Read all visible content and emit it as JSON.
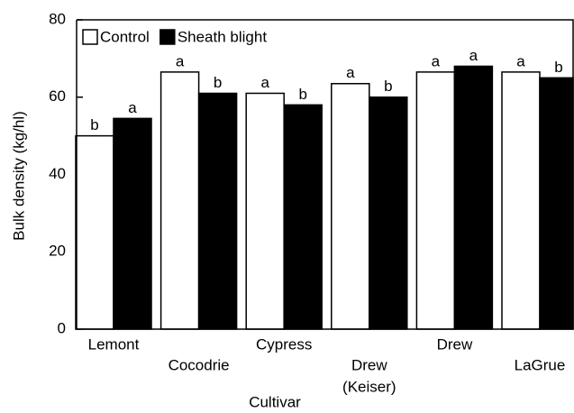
{
  "chart_data": {
    "type": "bar",
    "y_label": "Bulk density (kg/hl)",
    "x_label": "Cultivar",
    "categories": [
      "Lemont",
      "Cocodrie",
      "Cypress",
      [
        "Drew",
        "(Keiser)"
      ],
      "Drew",
      "LaGrue"
    ],
    "series": [
      {
        "name": "Control",
        "color": "#ffffff",
        "values": [
          50,
          66.5,
          61,
          63.5,
          66.5,
          66.5
        ],
        "letters": [
          "b",
          "a",
          "a",
          "a",
          "a",
          "a"
        ]
      },
      {
        "name": "Sheath blight",
        "color": "#000000",
        "values": [
          54.5,
          61,
          58,
          60,
          68,
          65
        ],
        "letters": [
          "a",
          "b",
          "b",
          "b",
          "a",
          "b"
        ]
      }
    ],
    "ylim": [
      0,
      80
    ],
    "yticks": [
      0,
      20,
      40,
      60,
      80
    ],
    "legend": "top-left"
  }
}
